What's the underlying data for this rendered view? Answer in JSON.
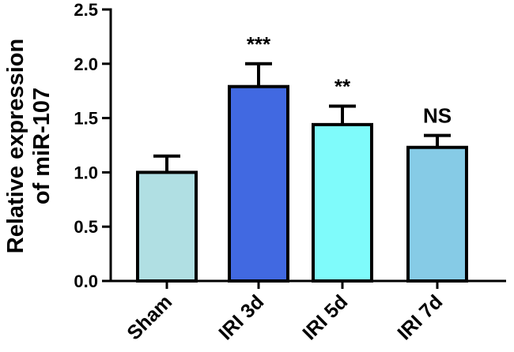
{
  "chart_data": {
    "type": "bar",
    "title": "",
    "xlabel": "",
    "ylabel_lines": [
      "Relative expression",
      "of miR-107"
    ],
    "ylim": [
      0,
      2.5
    ],
    "yticks": [
      "0.0",
      "0.5",
      "1.0",
      "1.5",
      "2.0",
      "2.5"
    ],
    "grid": false,
    "categories": [
      "Sham",
      "IRI 3d",
      "IRI 5d",
      "IRI 7d"
    ],
    "values": [
      1.0,
      1.79,
      1.44,
      1.23
    ],
    "errors": [
      0.15,
      0.21,
      0.17,
      0.11
    ],
    "annotations": [
      "",
      "***",
      "**",
      "NS"
    ],
    "colors": [
      "#b0dfe3",
      "#4169e1",
      "#7ffbfb",
      "#86cbe6"
    ]
  }
}
